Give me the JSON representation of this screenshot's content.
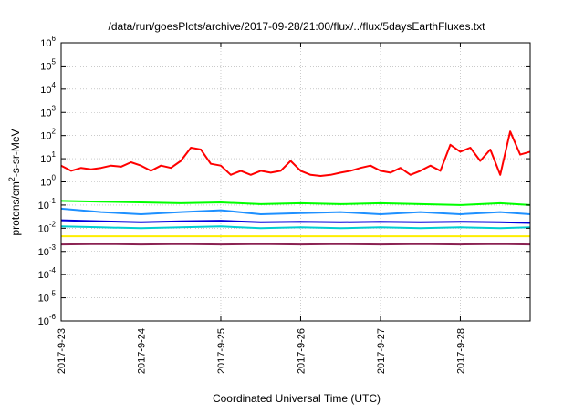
{
  "chart_data": {
    "type": "line",
    "title": "/data/run/goesPlots/archive/2017-09-28/21:00/flux/../flux/5daysEarthFluxes.txt",
    "xlabel": "Coordinated Universal Time (UTC)",
    "ylabel_prefix": "protons/cm",
    "ylabel_sup": "2",
    "ylabel_suffix": "-s-sr-MeV",
    "y_scale": "log",
    "ylim": [
      1e-06,
      1000000.0
    ],
    "y_ticks": [
      {
        "base": "10",
        "exp": "-6",
        "value": 1e-06
      },
      {
        "base": "10",
        "exp": "-5",
        "value": 1e-05
      },
      {
        "base": "10",
        "exp": "-4",
        "value": 0.0001
      },
      {
        "base": "10",
        "exp": "-3",
        "value": 0.001
      },
      {
        "base": "10",
        "exp": "-2",
        "value": 0.01
      },
      {
        "base": "10",
        "exp": "-1",
        "value": 0.1
      },
      {
        "base": "10",
        "exp": "0",
        "value": 1
      },
      {
        "base": "10",
        "exp": "1",
        "value": 10
      },
      {
        "base": "10",
        "exp": "2",
        "value": 100
      },
      {
        "base": "10",
        "exp": "3",
        "value": 1000
      },
      {
        "base": "10",
        "exp": "4",
        "value": 10000
      },
      {
        "base": "10",
        "exp": "5",
        "value": 100000
      },
      {
        "base": "10",
        "exp": "6",
        "value": 1000000
      }
    ],
    "xlim": [
      "2017-09-23",
      "2017-09-28 21:00"
    ],
    "x_ticks": [
      "2017-9-23",
      "2017-9-24",
      "2017-9-25",
      "2017-9-26",
      "2017-9-27",
      "2017-9-28"
    ],
    "grid": true,
    "series": [
      {
        "color": "#ff0000",
        "x": [
          "2017-09-23 00:00",
          "2017-09-23 03:00",
          "2017-09-23 06:00",
          "2017-09-23 09:00",
          "2017-09-23 12:00",
          "2017-09-23 15:00",
          "2017-09-23 18:00",
          "2017-09-23 21:00",
          "2017-09-24 00:00",
          "2017-09-24 03:00",
          "2017-09-24 06:00",
          "2017-09-24 09:00",
          "2017-09-24 12:00",
          "2017-09-24 15:00",
          "2017-09-24 18:00",
          "2017-09-24 21:00",
          "2017-09-25 00:00",
          "2017-09-25 03:00",
          "2017-09-25 06:00",
          "2017-09-25 09:00",
          "2017-09-25 12:00",
          "2017-09-25 15:00",
          "2017-09-25 18:00",
          "2017-09-25 21:00",
          "2017-09-26 00:00",
          "2017-09-26 03:00",
          "2017-09-26 06:00",
          "2017-09-26 09:00",
          "2017-09-26 12:00",
          "2017-09-26 15:00",
          "2017-09-26 18:00",
          "2017-09-26 21:00",
          "2017-09-27 00:00",
          "2017-09-27 03:00",
          "2017-09-27 06:00",
          "2017-09-27 09:00",
          "2017-09-27 12:00",
          "2017-09-27 15:00",
          "2017-09-27 18:00",
          "2017-09-27 21:00",
          "2017-09-28 00:00",
          "2017-09-28 03:00",
          "2017-09-28 06:00",
          "2017-09-28 09:00",
          "2017-09-28 12:00",
          "2017-09-28 15:00",
          "2017-09-28 18:00",
          "2017-09-28 21:00"
        ],
        "values": [
          5,
          3,
          4,
          3.5,
          4,
          5,
          4.5,
          7,
          5,
          3,
          5,
          4,
          8,
          30,
          25,
          6,
          5,
          2,
          3,
          2,
          3,
          2.5,
          3,
          8,
          3,
          2,
          1.8,
          2,
          2.5,
          3,
          4,
          5,
          3,
          2.5,
          4,
          2,
          3,
          5,
          3,
          40,
          20,
          30,
          8,
          25,
          2,
          150,
          15,
          20
        ]
      },
      {
        "color": "#00ff00",
        "x": [
          "2017-09-23 00:00",
          "2017-09-23 12:00",
          "2017-09-24 00:00",
          "2017-09-24 12:00",
          "2017-09-25 00:00",
          "2017-09-25 12:00",
          "2017-09-26 00:00",
          "2017-09-26 12:00",
          "2017-09-27 00:00",
          "2017-09-27 12:00",
          "2017-09-28 00:00",
          "2017-09-28 12:00",
          "2017-09-28 21:00"
        ],
        "values": [
          0.15,
          0.14,
          0.13,
          0.12,
          0.13,
          0.11,
          0.12,
          0.11,
          0.12,
          0.11,
          0.1,
          0.12,
          0.1
        ]
      },
      {
        "color": "#1e90ff",
        "x": [
          "2017-09-23 00:00",
          "2017-09-23 12:00",
          "2017-09-24 00:00",
          "2017-09-24 12:00",
          "2017-09-25 00:00",
          "2017-09-25 12:00",
          "2017-09-26 00:00",
          "2017-09-26 12:00",
          "2017-09-27 00:00",
          "2017-09-27 12:00",
          "2017-09-28 00:00",
          "2017-09-28 12:00",
          "2017-09-28 21:00"
        ],
        "values": [
          0.07,
          0.05,
          0.04,
          0.05,
          0.06,
          0.04,
          0.045,
          0.05,
          0.04,
          0.05,
          0.04,
          0.05,
          0.04
        ]
      },
      {
        "color": "#00ced1",
        "x": [
          "2017-09-23 00:00",
          "2017-09-23 12:00",
          "2017-09-24 00:00",
          "2017-09-24 12:00",
          "2017-09-25 00:00",
          "2017-09-25 12:00",
          "2017-09-26 00:00",
          "2017-09-26 12:00",
          "2017-09-27 00:00",
          "2017-09-27 12:00",
          "2017-09-28 00:00",
          "2017-09-28 12:00",
          "2017-09-28 21:00"
        ],
        "values": [
          0.012,
          0.011,
          0.01,
          0.011,
          0.012,
          0.01,
          0.011,
          0.01,
          0.011,
          0.01,
          0.011,
          0.01,
          0.011
        ]
      },
      {
        "color": "#0000dd",
        "x": [
          "2017-09-23 00:00",
          "2017-09-23 12:00",
          "2017-09-24 00:00",
          "2017-09-24 12:00",
          "2017-09-25 00:00",
          "2017-09-25 12:00",
          "2017-09-26 00:00",
          "2017-09-26 12:00",
          "2017-09-27 00:00",
          "2017-09-27 12:00",
          "2017-09-28 00:00",
          "2017-09-28 12:00",
          "2017-09-28 21:00"
        ],
        "values": [
          0.022,
          0.02,
          0.018,
          0.02,
          0.021,
          0.018,
          0.019,
          0.018,
          0.019,
          0.018,
          0.019,
          0.018,
          0.017
        ]
      },
      {
        "color": "#ffee00",
        "x": [
          "2017-09-23 00:00",
          "2017-09-24 00:00",
          "2017-09-25 00:00",
          "2017-09-26 00:00",
          "2017-09-27 00:00",
          "2017-09-28 00:00",
          "2017-09-28 21:00"
        ],
        "values": [
          0.0045,
          0.0045,
          0.0045,
          0.0045,
          0.0045,
          0.0045,
          0.0045
        ]
      },
      {
        "color": "#8b2252",
        "x": [
          "2017-09-23 00:00",
          "2017-09-23 12:00",
          "2017-09-24 00:00",
          "2017-09-24 12:00",
          "2017-09-25 00:00",
          "2017-09-25 12:00",
          "2017-09-26 00:00",
          "2017-09-26 12:00",
          "2017-09-27 00:00",
          "2017-09-27 12:00",
          "2017-09-28 00:00",
          "2017-09-28 12:00",
          "2017-09-28 21:00"
        ],
        "values": [
          0.002,
          0.0021,
          0.002,
          0.0021,
          0.002,
          0.0021,
          0.002,
          0.0021,
          0.002,
          0.0021,
          0.002,
          0.0021,
          0.002
        ]
      }
    ]
  }
}
